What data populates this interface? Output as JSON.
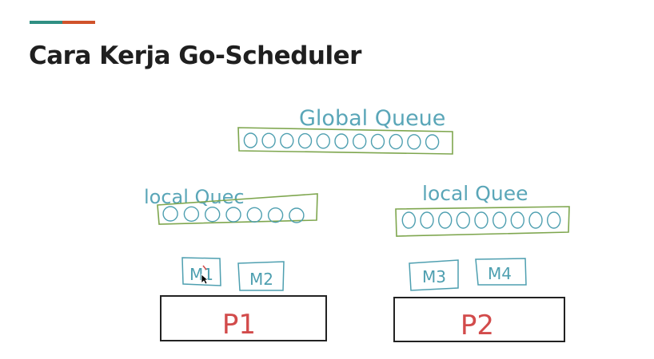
{
  "slide": {
    "title": "Cara Kerja Go-Scheduler",
    "accent_colors": [
      "#2f8f83",
      "#d0532b"
    ]
  },
  "diagram": {
    "global_queue": {
      "label": "Global Queue",
      "goroutines": 11
    },
    "local_queues": [
      {
        "label": "local Quec",
        "goroutines": 7
      },
      {
        "label": "local Quee",
        "goroutines": 9
      }
    ],
    "machines": [
      "M1",
      "M2",
      "M3",
      "M4"
    ],
    "processors": [
      "P1",
      "P2"
    ],
    "colors": {
      "queue_label": "#5aa6b8",
      "queue_box": "#7ea64e",
      "machine": "#4e9fb0",
      "processor_box": "#222222",
      "processor_label": "#d24b4b"
    }
  }
}
